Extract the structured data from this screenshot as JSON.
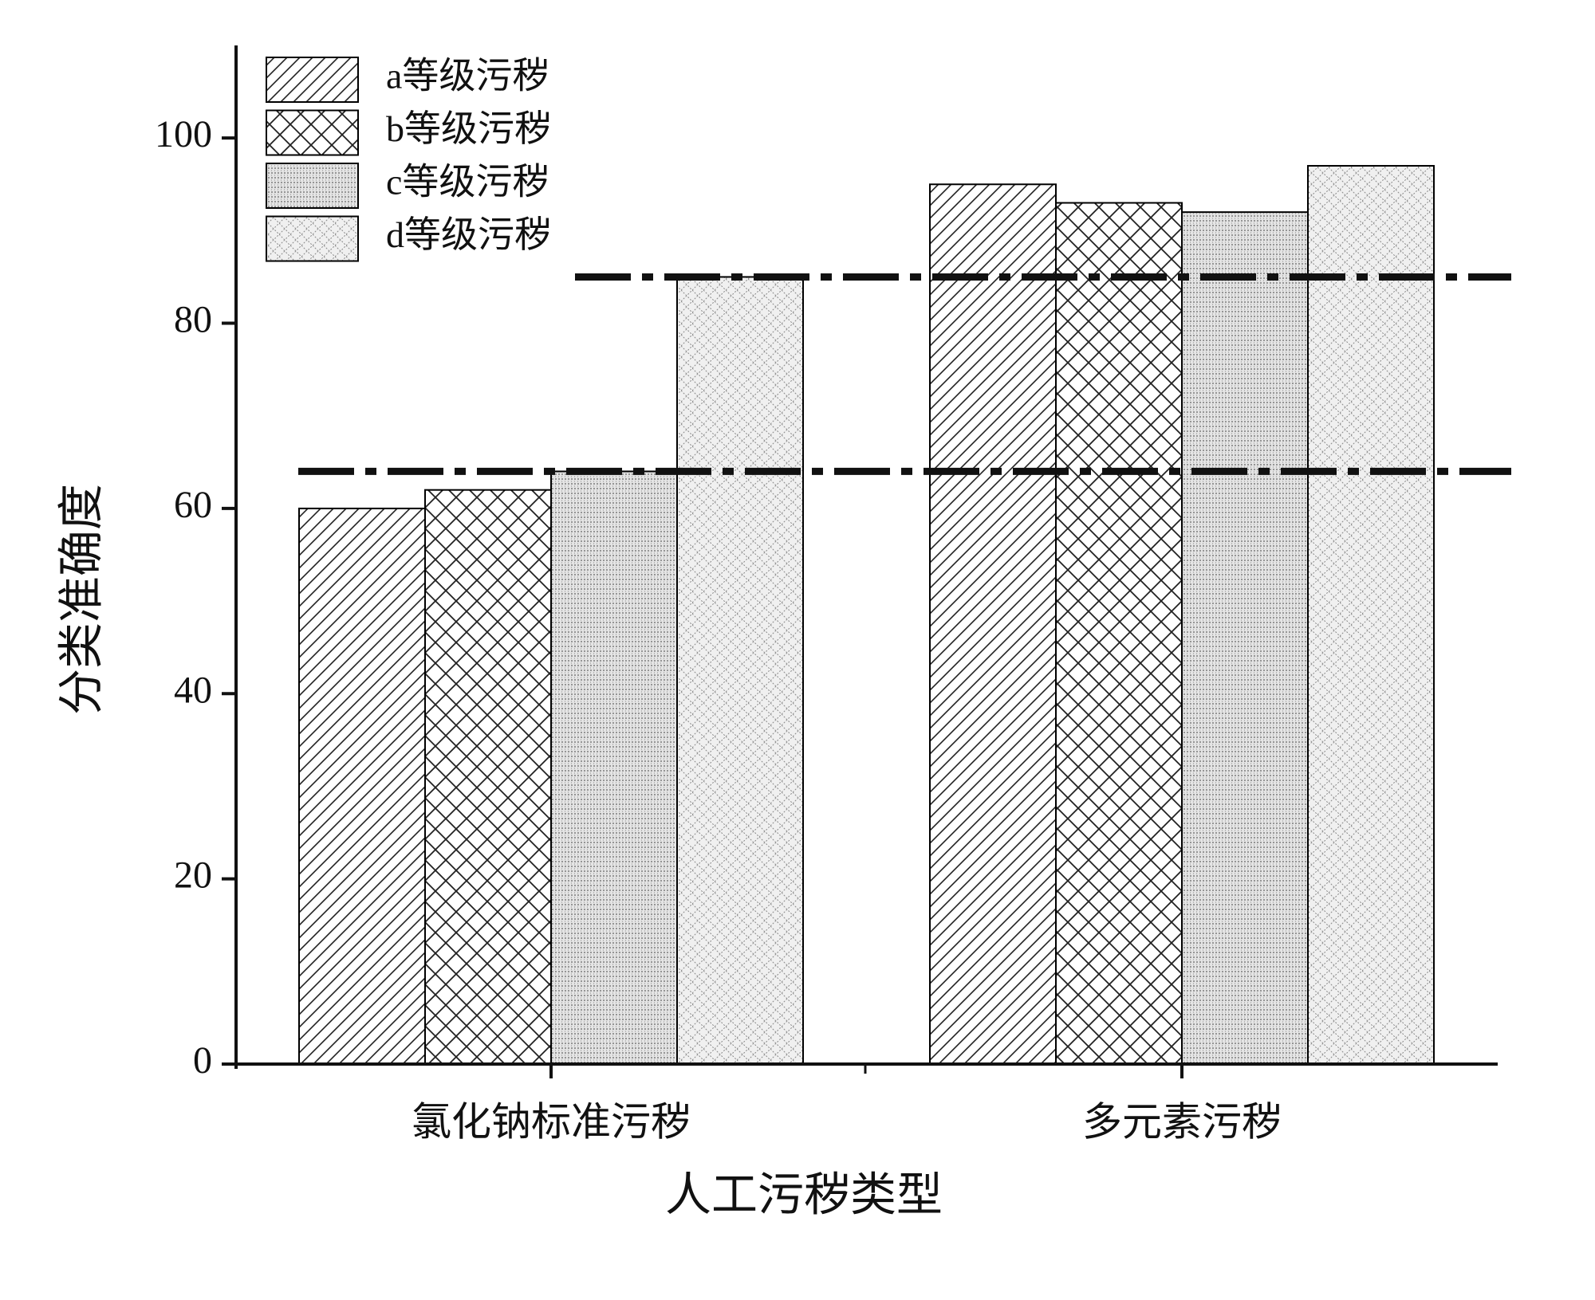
{
  "chart_data": {
    "type": "bar",
    "x_label": "人工污秽类型",
    "y_label": "分类准确度",
    "categories": [
      "氯化钠标准污秽",
      "多元素污秽"
    ],
    "series": [
      {
        "name": "a等级污秽",
        "color": "#000000",
        "pattern": "diagonal",
        "values": [
          60,
          95
        ]
      },
      {
        "name": "b等级污秽",
        "color": "#000000",
        "pattern": "crosshatch",
        "values": [
          62,
          93
        ]
      },
      {
        "name": "c等级污秽",
        "color": "#000000",
        "pattern": "dense",
        "values": [
          64,
          92
        ]
      },
      {
        "name": "d等级污秽",
        "color": "#000000",
        "pattern": "dotted",
        "values": [
          85,
          97
        ]
      }
    ],
    "reference_lines": [
      64,
      85
    ],
    "ylim": [
      0,
      110
    ],
    "yticks": [
      0,
      20,
      40,
      60,
      80,
      100
    ],
    "legend": "upper left",
    "grid": false
  }
}
